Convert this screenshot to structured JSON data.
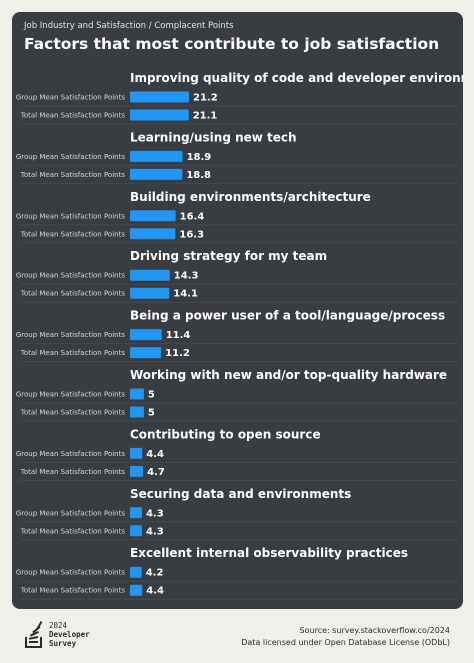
{
  "header": {
    "breadcrumb": "Job Industry and Satisfaction / Complacent Points",
    "title": "Factors that most contribute to job satisfaction"
  },
  "footer": {
    "logo_year": "2024",
    "logo_line1": "Developer",
    "logo_line2": "Survey",
    "source": "Source: survey.stackoverflow.co/2024",
    "license": "Data licensed under Open Database License (ODbL)"
  },
  "colors": {
    "bar": "#2196f3",
    "card_background": "#393c40",
    "page_background": "#f1efea"
  },
  "chart_data": {
    "type": "bar",
    "orientation": "horizontal",
    "title": "Factors that most contribute to job satisfaction",
    "series_names": [
      "Group Mean Satisfaction Points",
      "Total Mean Satisfaction Points"
    ],
    "categories": [
      "Improving quality of code and developer environments",
      "Learning/using new tech",
      "Building environments/architecture",
      "Driving strategy for my team",
      "Being a power user of a tool/language/process",
      "Working with new and/or top-quality hardware",
      "Contributing to open source",
      "Securing data and environments",
      "Excellent internal observability practices"
    ],
    "series": [
      {
        "name": "Group Mean Satisfaction Points",
        "values": [
          21.2,
          18.9,
          16.4,
          14.3,
          11.4,
          5,
          4.4,
          4.3,
          4.2
        ]
      },
      {
        "name": "Total Mean Satisfaction Points",
        "values": [
          21.1,
          18.8,
          16.3,
          14.1,
          11.2,
          5,
          4.7,
          4.3,
          4.4
        ]
      }
    ],
    "xlim": [
      0,
      21.2
    ],
    "grid": false,
    "legend": "none"
  }
}
